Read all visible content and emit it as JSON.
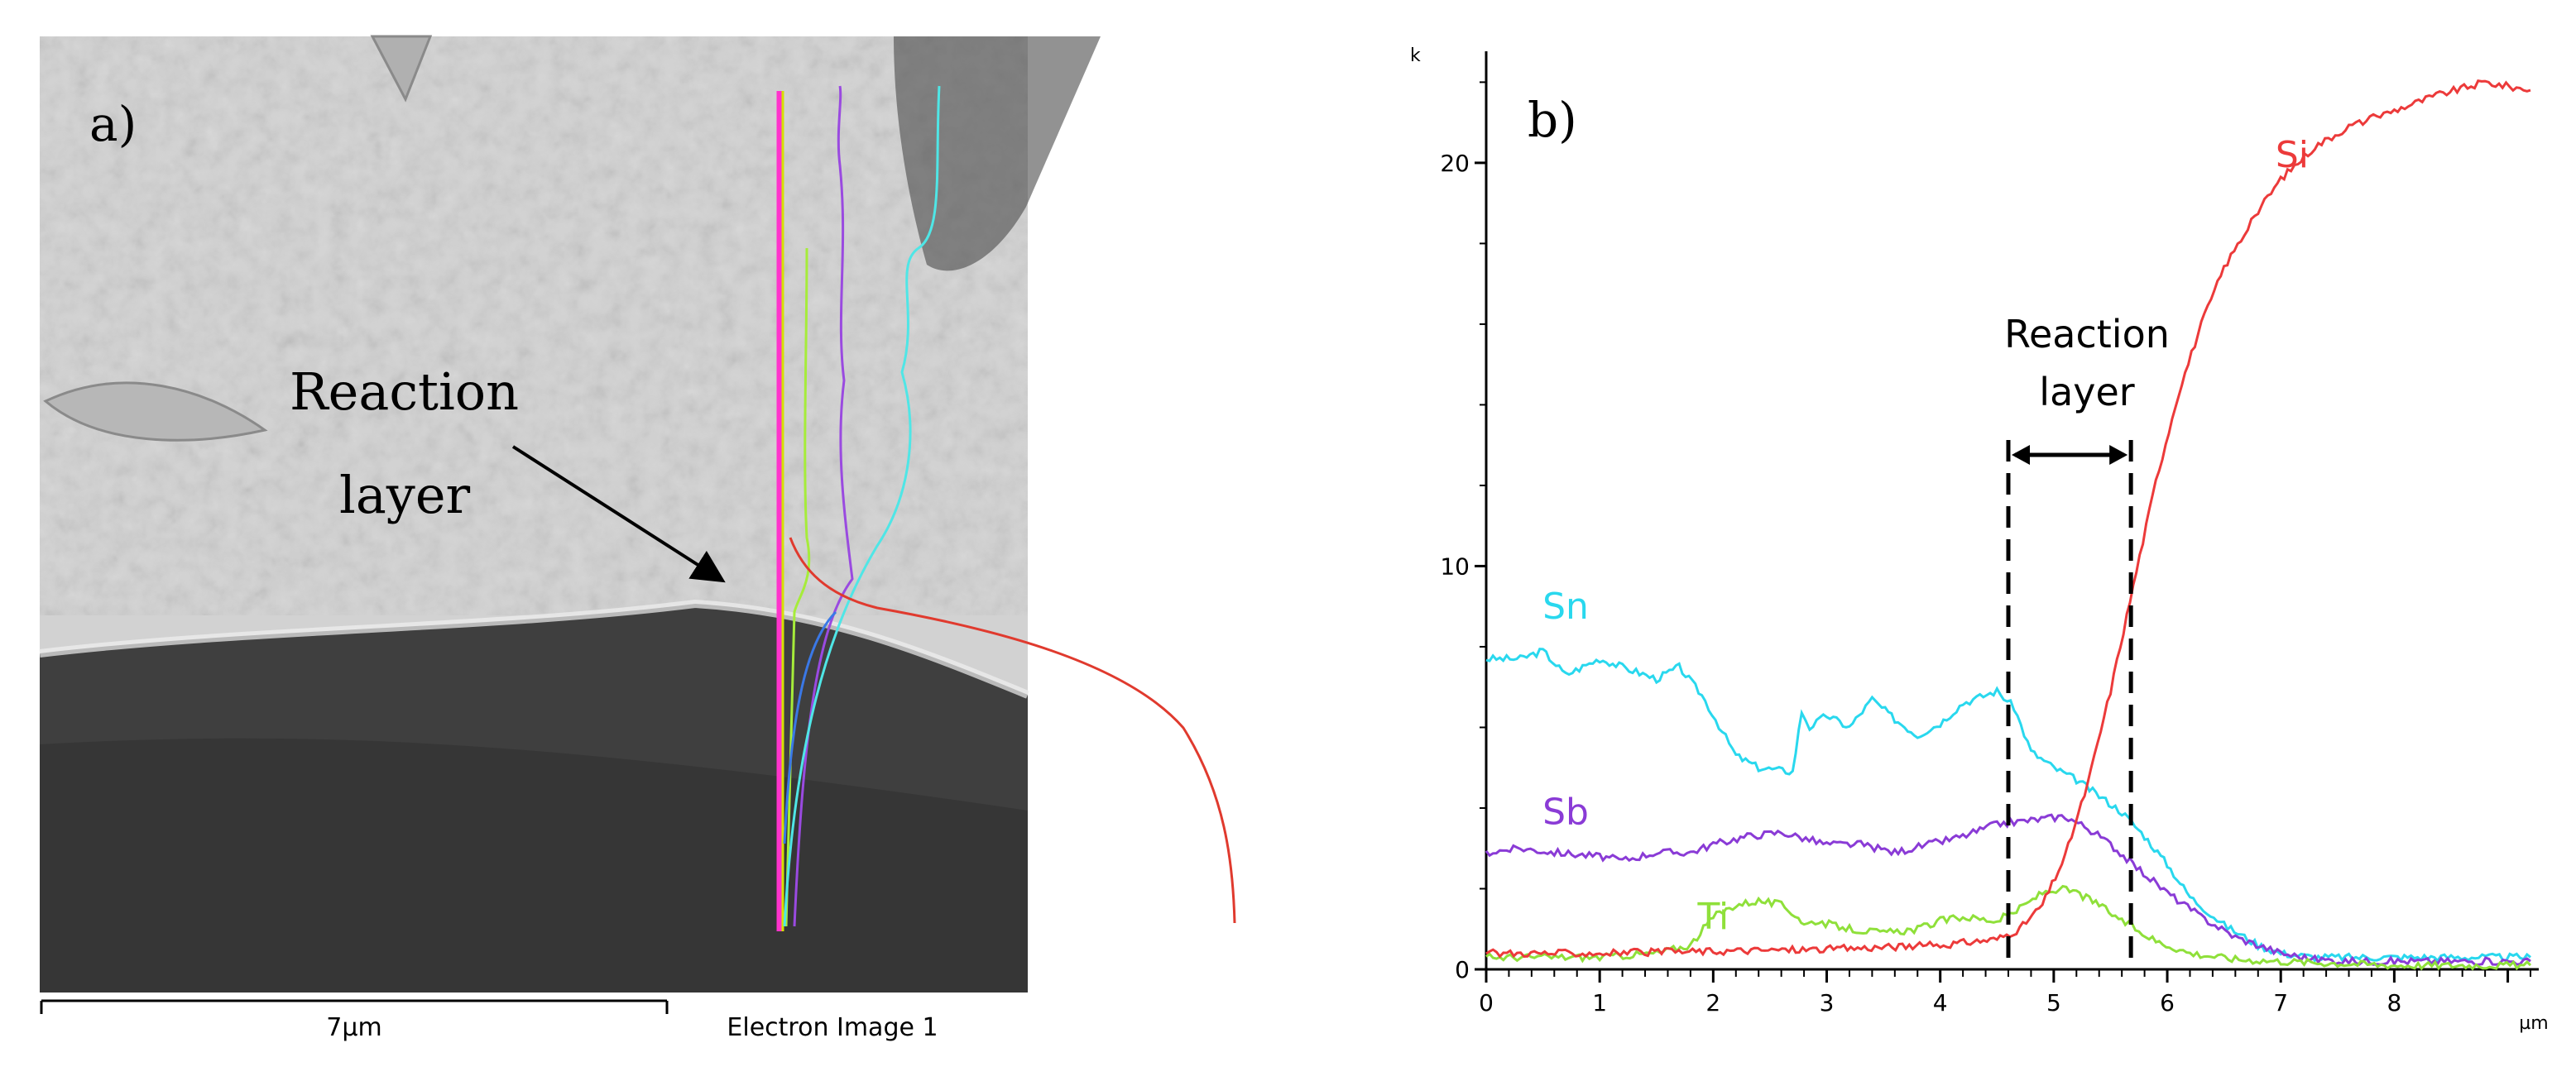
{
  "panel_a": {
    "label": "a)",
    "annotation_line1": "Reaction",
    "annotation_line2": "layer",
    "scale_text": "7µm",
    "caption": "Electron Image 1",
    "colors": {
      "dark_substrate": "#3b3b3b",
      "light_phase": "#cfcfcf",
      "line_magenta": "#ff33cc",
      "line_yellow": "#d6e000",
      "line_green": "#a6ec3a",
      "line_purple": "#9a4ae0",
      "line_cyan": "#4fe6e6",
      "line_red": "#e03a2e",
      "line_blue": "#3a78e6"
    }
  },
  "panel_b": {
    "label": "b)",
    "annotation_line1": "Reaction",
    "annotation_line2": "layer"
  },
  "chart_data": {
    "type": "line",
    "title": "",
    "xlabel": "",
    "ylabel": "",
    "x_unit": "µm",
    "y_unit": "k",
    "xlim": [
      0,
      9.2
    ],
    "ylim": [
      0,
      22.5
    ],
    "x_ticks": [
      0,
      1,
      2,
      3,
      4,
      5,
      6,
      7,
      8
    ],
    "y_ticks": [
      0,
      10,
      20
    ],
    "reaction_layer": [
      4.6,
      5.68
    ],
    "series": [
      {
        "name": "Sn",
        "color": "#29d8ee",
        "x": [
          0,
          0.3,
          0.5,
          0.7,
          1.0,
          1.2,
          1.5,
          1.7,
          1.9,
          2.2,
          2.4,
          2.7,
          2.78,
          2.85,
          3.0,
          3.2,
          3.4,
          3.6,
          3.8,
          4.0,
          4.2,
          4.5,
          4.65,
          4.8,
          5.0,
          5.2,
          5.4,
          5.6,
          5.8,
          6.0,
          6.2,
          6.5,
          6.8,
          7.0,
          7.3,
          7.6,
          8.0,
          8.5,
          9.2
        ],
        "y": [
          7.7,
          7.7,
          7.9,
          7.3,
          7.7,
          7.5,
          7.2,
          7.5,
          6.8,
          5.3,
          5.0,
          4.9,
          6.4,
          6.0,
          6.3,
          6.0,
          6.7,
          6.2,
          5.8,
          6.1,
          6.6,
          6.9,
          6.5,
          5.4,
          5.0,
          4.7,
          4.3,
          3.9,
          3.3,
          2.6,
          1.8,
          1.1,
          0.6,
          0.4,
          0.3,
          0.3,
          0.3,
          0.3,
          0.3
        ]
      },
      {
        "name": "Sb",
        "color": "#8a3bd6",
        "x": [
          0,
          0.3,
          0.6,
          1.0,
          1.2,
          1.5,
          1.8,
          2.0,
          2.3,
          2.6,
          3.0,
          3.3,
          3.6,
          3.9,
          4.2,
          4.5,
          4.8,
          5.1,
          5.3,
          5.5,
          5.7,
          6.0,
          6.3,
          6.6,
          7.0,
          7.3,
          7.6,
          8.0,
          8.5,
          9.2
        ],
        "y": [
          2.9,
          3.0,
          2.9,
          2.8,
          2.7,
          2.9,
          2.9,
          3.1,
          3.3,
          3.4,
          3.1,
          3.1,
          2.9,
          3.1,
          3.3,
          3.6,
          3.7,
          3.8,
          3.5,
          3.1,
          2.6,
          1.9,
          1.3,
          0.8,
          0.4,
          0.25,
          0.2,
          0.2,
          0.2,
          0.2
        ]
      },
      {
        "name": "Ti",
        "color": "#8fe03a",
        "x": [
          0,
          1.0,
          1.5,
          1.8,
          2.0,
          2.2,
          2.4,
          2.6,
          2.75,
          2.8,
          2.9,
          3.2,
          3.5,
          3.8,
          4.0,
          4.2,
          4.5,
          4.7,
          4.9,
          5.05,
          5.2,
          5.4,
          5.6,
          5.9,
          6.2,
          6.6,
          7.0,
          7.5,
          8.0,
          9.2
        ],
        "y": [
          0.3,
          0.3,
          0.4,
          0.6,
          1.3,
          1.6,
          1.7,
          1.6,
          1.3,
          1.1,
          1.2,
          1.0,
          0.9,
          1.0,
          1.2,
          1.3,
          1.2,
          1.5,
          1.9,
          2.0,
          1.9,
          1.6,
          1.2,
          0.7,
          0.4,
          0.25,
          0.2,
          0.15,
          0.1,
          0.1
        ]
      },
      {
        "name": "Si",
        "color": "#ec3a3a",
        "x": [
          0,
          1.0,
          2.0,
          3.0,
          4.0,
          4.5,
          4.7,
          4.9,
          5.1,
          5.3,
          5.5,
          5.7,
          5.9,
          6.1,
          6.3,
          6.5,
          6.8,
          7.0,
          7.3,
          7.6,
          8.0,
          8.4,
          8.8,
          9.2
        ],
        "y": [
          0.4,
          0.4,
          0.45,
          0.5,
          0.6,
          0.75,
          1.0,
          1.6,
          2.8,
          4.6,
          6.9,
          9.5,
          12.1,
          14.3,
          16.0,
          17.4,
          18.8,
          19.6,
          20.4,
          20.9,
          21.3,
          21.7,
          22.0,
          21.8
        ]
      }
    ]
  }
}
